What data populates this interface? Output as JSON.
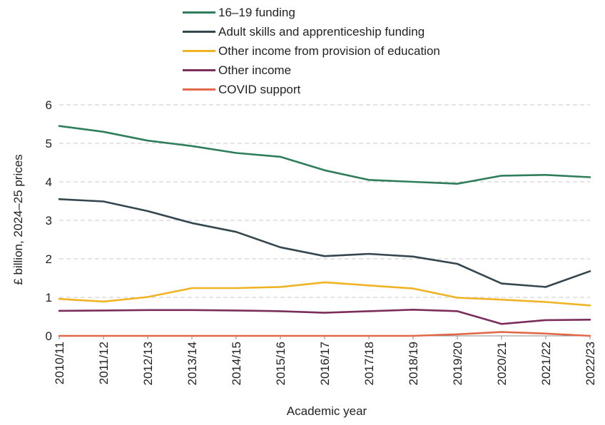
{
  "chart_data": {
    "type": "line",
    "title": "",
    "xlabel": "Academic year",
    "ylabel": "£ billion, 2024–25 prices",
    "ylim": [
      0,
      6
    ],
    "yticks": [
      0,
      1,
      2,
      3,
      4,
      5,
      6
    ],
    "grid": "horizontal dashed",
    "legend_position": "top",
    "categories": [
      "2010/11",
      "2011/12",
      "2012/13",
      "2013/14",
      "2014/15",
      "2015/16",
      "2016/17",
      "2017/18",
      "2018/19",
      "2019/20",
      "2020/21",
      "2021/22",
      "2022/23"
    ],
    "series": [
      {
        "name": "16–19 funding",
        "color": "#2e7d5b",
        "values": [
          5.45,
          5.3,
          5.07,
          4.93,
          4.75,
          4.65,
          4.3,
          4.05,
          4.0,
          3.95,
          4.16,
          4.18,
          4.12
        ]
      },
      {
        "name": "Adult skills and apprenticeship funding",
        "color": "#34474f",
        "values": [
          3.55,
          3.49,
          3.24,
          2.93,
          2.7,
          2.3,
          2.07,
          2.13,
          2.06,
          1.87,
          1.36,
          1.27,
          1.68
        ]
      },
      {
        "name": "Other income from provision of education",
        "color": "#f0b323",
        "values": [
          0.96,
          0.89,
          1.01,
          1.24,
          1.24,
          1.27,
          1.39,
          1.31,
          1.23,
          0.99,
          0.94,
          0.88,
          0.79
        ]
      },
      {
        "name": "Other income",
        "color": "#7b2d5c",
        "values": [
          0.65,
          0.66,
          0.67,
          0.67,
          0.66,
          0.64,
          0.6,
          0.64,
          0.68,
          0.64,
          0.31,
          0.41,
          0.42
        ]
      },
      {
        "name": "COVID support",
        "color": "#e0694a",
        "values": [
          0,
          0,
          0,
          0,
          0,
          0,
          0,
          0,
          0,
          0.04,
          0.1,
          0.06,
          0
        ]
      }
    ]
  }
}
